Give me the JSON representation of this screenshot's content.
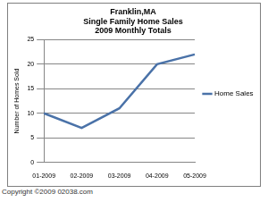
{
  "chart_data": {
    "type": "line",
    "title": [
      "Franklin,MA",
      "Single Family Home Sales",
      "2009 Monthly Totals"
    ],
    "y_label": "Number of Homes Sold",
    "categories": [
      "01-2009",
      "02-2009",
      "03-2009",
      "04-2009",
      "05-2009"
    ],
    "series": [
      {
        "name": "Home Sales",
        "color": "#4a72a8",
        "values": [
          10,
          7,
          11,
          20,
          22
        ]
      }
    ],
    "ylim": [
      0,
      25
    ],
    "yticks": [
      0,
      5,
      10,
      15,
      20,
      25
    ],
    "grid": true,
    "legend": "right",
    "annotations": [
      "Copyright ©2009 02038.com"
    ]
  }
}
